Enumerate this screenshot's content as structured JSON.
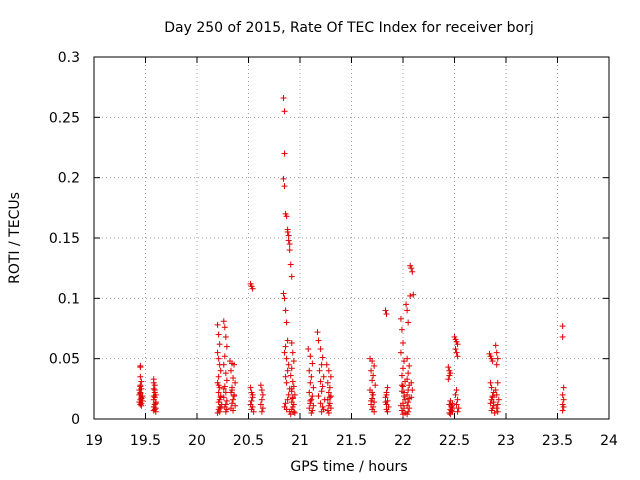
{
  "chart_data": {
    "type": "scatter",
    "title": "Day 250 of 2015, Rate Of TEC Index for receiver borj",
    "xlabel": "GPS time / hours",
    "ylabel": "ROTI / TECUs",
    "xlim": [
      19,
      24
    ],
    "ylim": [
      0,
      0.3
    ],
    "x_ticks": [
      19,
      19.5,
      20,
      20.5,
      21,
      21.5,
      22,
      22.5,
      23,
      23.5,
      24
    ],
    "x_tick_labels": [
      "19",
      "19.5",
      "20",
      "20.5",
      "21",
      "21.5",
      "22",
      "22.5",
      "23",
      "23.5",
      "24"
    ],
    "y_ticks": [
      0,
      0.05,
      0.1,
      0.15,
      0.2,
      0.25,
      0.3
    ],
    "y_tick_labels": [
      "0",
      "0.05",
      "0.1",
      "0.15",
      "0.2",
      "0.25",
      "0.3"
    ],
    "grid": true,
    "marker": "plus",
    "marker_color": "#e00000",
    "series": [
      {
        "x": [
          19.45,
          19.45,
          19.45,
          19.46,
          19.45,
          19.46,
          19.45,
          19.44,
          19.46,
          19.45,
          19.47,
          19.44,
          19.46,
          19.45,
          19.46,
          19.45,
          19.44,
          19.47,
          19.46,
          19.45,
          19.58,
          19.58,
          19.59,
          19.58,
          19.59,
          19.6,
          19.59,
          19.58,
          19.6,
          19.59,
          19.58,
          19.6,
          19.59,
          19.58,
          19.6,
          19.59,
          19.58,
          19.6,
          20.2,
          20.21,
          20.22,
          20.2,
          20.21,
          20.22,
          20.23,
          20.21,
          20.2,
          20.22,
          20.21,
          20.23,
          20.22,
          20.21,
          20.24,
          20.22,
          20.23,
          20.21,
          20.22,
          20.2,
          20.23,
          20.21,
          20.26,
          20.27,
          20.28,
          20.29,
          20.27,
          20.26,
          20.28,
          20.29,
          20.27,
          20.28,
          20.26,
          20.29,
          20.28,
          20.27,
          20.29,
          20.28,
          20.26,
          20.32,
          20.34,
          20.36,
          20.33,
          20.35,
          20.37,
          20.34,
          20.33,
          20.36,
          20.35,
          20.34,
          20.37,
          20.33,
          20.35,
          20.36,
          20.34,
          20.52,
          20.53,
          20.54,
          20.52,
          20.53,
          20.54,
          20.53,
          20.52,
          20.54,
          20.53,
          20.55,
          20.54,
          20.62,
          20.63,
          20.64,
          20.63,
          20.62,
          20.64,
          20.63,
          20.84,
          20.85,
          20.85,
          20.84,
          20.85,
          20.86,
          20.87,
          20.88,
          20.88,
          20.89,
          20.89,
          20.9,
          20.9,
          20.91,
          20.92,
          20.84,
          20.85,
          20.86,
          20.87,
          20.88,
          20.86,
          20.85,
          20.87,
          20.89,
          20.88,
          20.86,
          20.87,
          20.9,
          20.89,
          20.88,
          20.86,
          20.85,
          20.87,
          20.9,
          20.91,
          20.92,
          20.93,
          20.94,
          20.92,
          20.91,
          20.93,
          20.94,
          20.92,
          20.95,
          20.93,
          20.92,
          20.94,
          20.93,
          20.92,
          20.94,
          20.95,
          20.93,
          20.92,
          21.08,
          21.1,
          21.12,
          21.09,
          21.11,
          21.1,
          21.13,
          21.09,
          21.12,
          21.11,
          21.1,
          21.13,
          21.09,
          21.12,
          21.11,
          21.1,
          21.17,
          21.18,
          21.2,
          21.22,
          21.21,
          21.19,
          21.23,
          21.2,
          21.22,
          21.21,
          21.18,
          21.24,
          21.2,
          21.22,
          21.23,
          21.21,
          21.26,
          21.28,
          21.3,
          21.27,
          21.29,
          21.28,
          21.3,
          21.27,
          21.29,
          21.28,
          21.3,
          21.27,
          21.28,
          21.29,
          21.68,
          21.7,
          21.72,
          21.69,
          21.71,
          21.7,
          21.73,
          21.68,
          21.71,
          21.7,
          21.72,
          21.69,
          21.71,
          21.7,
          21.72,
          21.7,
          21.69,
          21.83,
          21.84,
          21.85,
          21.84,
          21.83,
          21.85,
          21.84,
          21.86,
          21.84,
          21.85,
          21.84,
          21.83,
          21.98,
          21.99,
          22.0,
          21.98,
          22.01,
          22.0,
          21.99,
          22.02,
          22.0,
          21.99,
          22.01,
          22.02,
          22.0,
          21.98,
          22.01,
          21.99,
          22.02,
          22.0,
          22.01,
          21.99,
          22.03,
          22.04,
          22.05,
          22.04,
          22.06,
          22.05,
          22.04,
          22.06,
          22.05,
          22.04,
          22.06,
          22.05,
          22.04,
          22.06,
          22.05,
          22.04,
          22.07,
          22.08,
          22.09,
          22.1,
          22.07,
          22.08,
          22.09,
          22.08,
          22.44,
          22.45,
          22.46,
          22.45,
          22.44,
          22.46,
          22.45,
          22.47,
          22.48,
          22.46,
          22.47,
          22.48,
          22.45,
          22.46,
          22.47,
          22.48,
          22.5,
          22.51,
          22.52,
          22.53,
          22.51,
          22.52,
          22.53,
          22.52,
          22.51,
          22.53,
          22.52,
          22.54,
          22.53,
          22.84,
          22.85,
          22.86,
          22.87,
          22.85,
          22.86,
          22.88,
          22.87,
          22.86,
          22.85,
          22.88,
          22.87,
          22.86,
          22.89,
          22.88,
          22.87,
          22.9,
          22.91,
          22.92,
          22.91,
          22.92,
          22.9,
          22.91,
          22.93,
          22.92,
          22.91,
          22.92,
          23.55,
          23.55,
          23.56,
          23.55,
          23.56,
          23.55,
          23.56,
          23.55
        ],
        "y": [
          0.044,
          0.043,
          0.035,
          0.031,
          0.028,
          0.025,
          0.022,
          0.02,
          0.018,
          0.016,
          0.015,
          0.014,
          0.013,
          0.012,
          0.011,
          0.027,
          0.024,
          0.019,
          0.017,
          0.021,
          0.033,
          0.03,
          0.028,
          0.025,
          0.022,
          0.02,
          0.018,
          0.016,
          0.014,
          0.012,
          0.01,
          0.009,
          0.008,
          0.007,
          0.006,
          0.024,
          0.019,
          0.013,
          0.078,
          0.07,
          0.062,
          0.055,
          0.05,
          0.045,
          0.04,
          0.035,
          0.03,
          0.026,
          0.022,
          0.019,
          0.016,
          0.014,
          0.012,
          0.01,
          0.009,
          0.008,
          0.006,
          0.005,
          0.018,
          0.028,
          0.081,
          0.076,
          0.068,
          0.06,
          0.052,
          0.045,
          0.038,
          0.032,
          0.027,
          0.022,
          0.018,
          0.015,
          0.012,
          0.01,
          0.008,
          0.006,
          0.025,
          0.048,
          0.046,
          0.045,
          0.04,
          0.034,
          0.03,
          0.026,
          0.022,
          0.019,
          0.016,
          0.013,
          0.011,
          0.009,
          0.007,
          0.02,
          0.024,
          0.112,
          0.11,
          0.108,
          0.026,
          0.022,
          0.018,
          0.015,
          0.012,
          0.01,
          0.008,
          0.006,
          0.02,
          0.028,
          0.024,
          0.02,
          0.016,
          0.012,
          0.009,
          0.006,
          0.266,
          0.255,
          0.22,
          0.199,
          0.193,
          0.17,
          0.168,
          0.157,
          0.155,
          0.152,
          0.148,
          0.145,
          0.14,
          0.128,
          0.118,
          0.104,
          0.1,
          0.09,
          0.08,
          0.065,
          0.06,
          0.055,
          0.05,
          0.045,
          0.04,
          0.035,
          0.03,
          0.025,
          0.02,
          0.016,
          0.013,
          0.01,
          0.008,
          0.006,
          0.004,
          0.063,
          0.055,
          0.048,
          0.042,
          0.036,
          0.031,
          0.027,
          0.023,
          0.02,
          0.017,
          0.014,
          0.012,
          0.01,
          0.008,
          0.006,
          0.005,
          0.018,
          0.025,
          0.058,
          0.052,
          0.046,
          0.04,
          0.035,
          0.03,
          0.026,
          0.022,
          0.019,
          0.016,
          0.013,
          0.011,
          0.009,
          0.007,
          0.005,
          0.015,
          0.072,
          0.065,
          0.058,
          0.051,
          0.045,
          0.04,
          0.035,
          0.031,
          0.027,
          0.023,
          0.019,
          0.016,
          0.013,
          0.01,
          0.008,
          0.006,
          0.045,
          0.04,
          0.035,
          0.03,
          0.026,
          0.022,
          0.019,
          0.016,
          0.013,
          0.011,
          0.009,
          0.007,
          0.005,
          0.018,
          0.05,
          0.048,
          0.044,
          0.04,
          0.036,
          0.032,
          0.028,
          0.024,
          0.02,
          0.017,
          0.014,
          0.012,
          0.01,
          0.008,
          0.006,
          0.022,
          0.015,
          0.09,
          0.087,
          0.026,
          0.022,
          0.018,
          0.015,
          0.012,
          0.01,
          0.008,
          0.006,
          0.02,
          0.014,
          0.083,
          0.074,
          0.063,
          0.055,
          0.048,
          0.042,
          0.036,
          0.031,
          0.027,
          0.023,
          0.019,
          0.016,
          0.013,
          0.011,
          0.009,
          0.007,
          0.005,
          0.004,
          0.022,
          0.028,
          0.095,
          0.09,
          0.08,
          0.05,
          0.044,
          0.038,
          0.033,
          0.028,
          0.024,
          0.02,
          0.017,
          0.014,
          0.011,
          0.009,
          0.006,
          0.004,
          0.127,
          0.125,
          0.122,
          0.103,
          0.102,
          0.03,
          0.024,
          0.018,
          0.043,
          0.04,
          0.038,
          0.036,
          0.033,
          0.015,
          0.012,
          0.01,
          0.009,
          0.008,
          0.007,
          0.006,
          0.005,
          0.004,
          0.011,
          0.013,
          0.068,
          0.066,
          0.064,
          0.062,
          0.058,
          0.055,
          0.052,
          0.024,
          0.02,
          0.016,
          0.012,
          0.009,
          0.006,
          0.054,
          0.052,
          0.05,
          0.048,
          0.03,
          0.026,
          0.022,
          0.019,
          0.016,
          0.013,
          0.011,
          0.009,
          0.007,
          0.005,
          0.014,
          0.018,
          0.061,
          0.055,
          0.05,
          0.045,
          0.03,
          0.024,
          0.02,
          0.016,
          0.012,
          0.009,
          0.006,
          0.077,
          0.068,
          0.026,
          0.02,
          0.016,
          0.012,
          0.01,
          0.007
        ]
      }
    ]
  }
}
